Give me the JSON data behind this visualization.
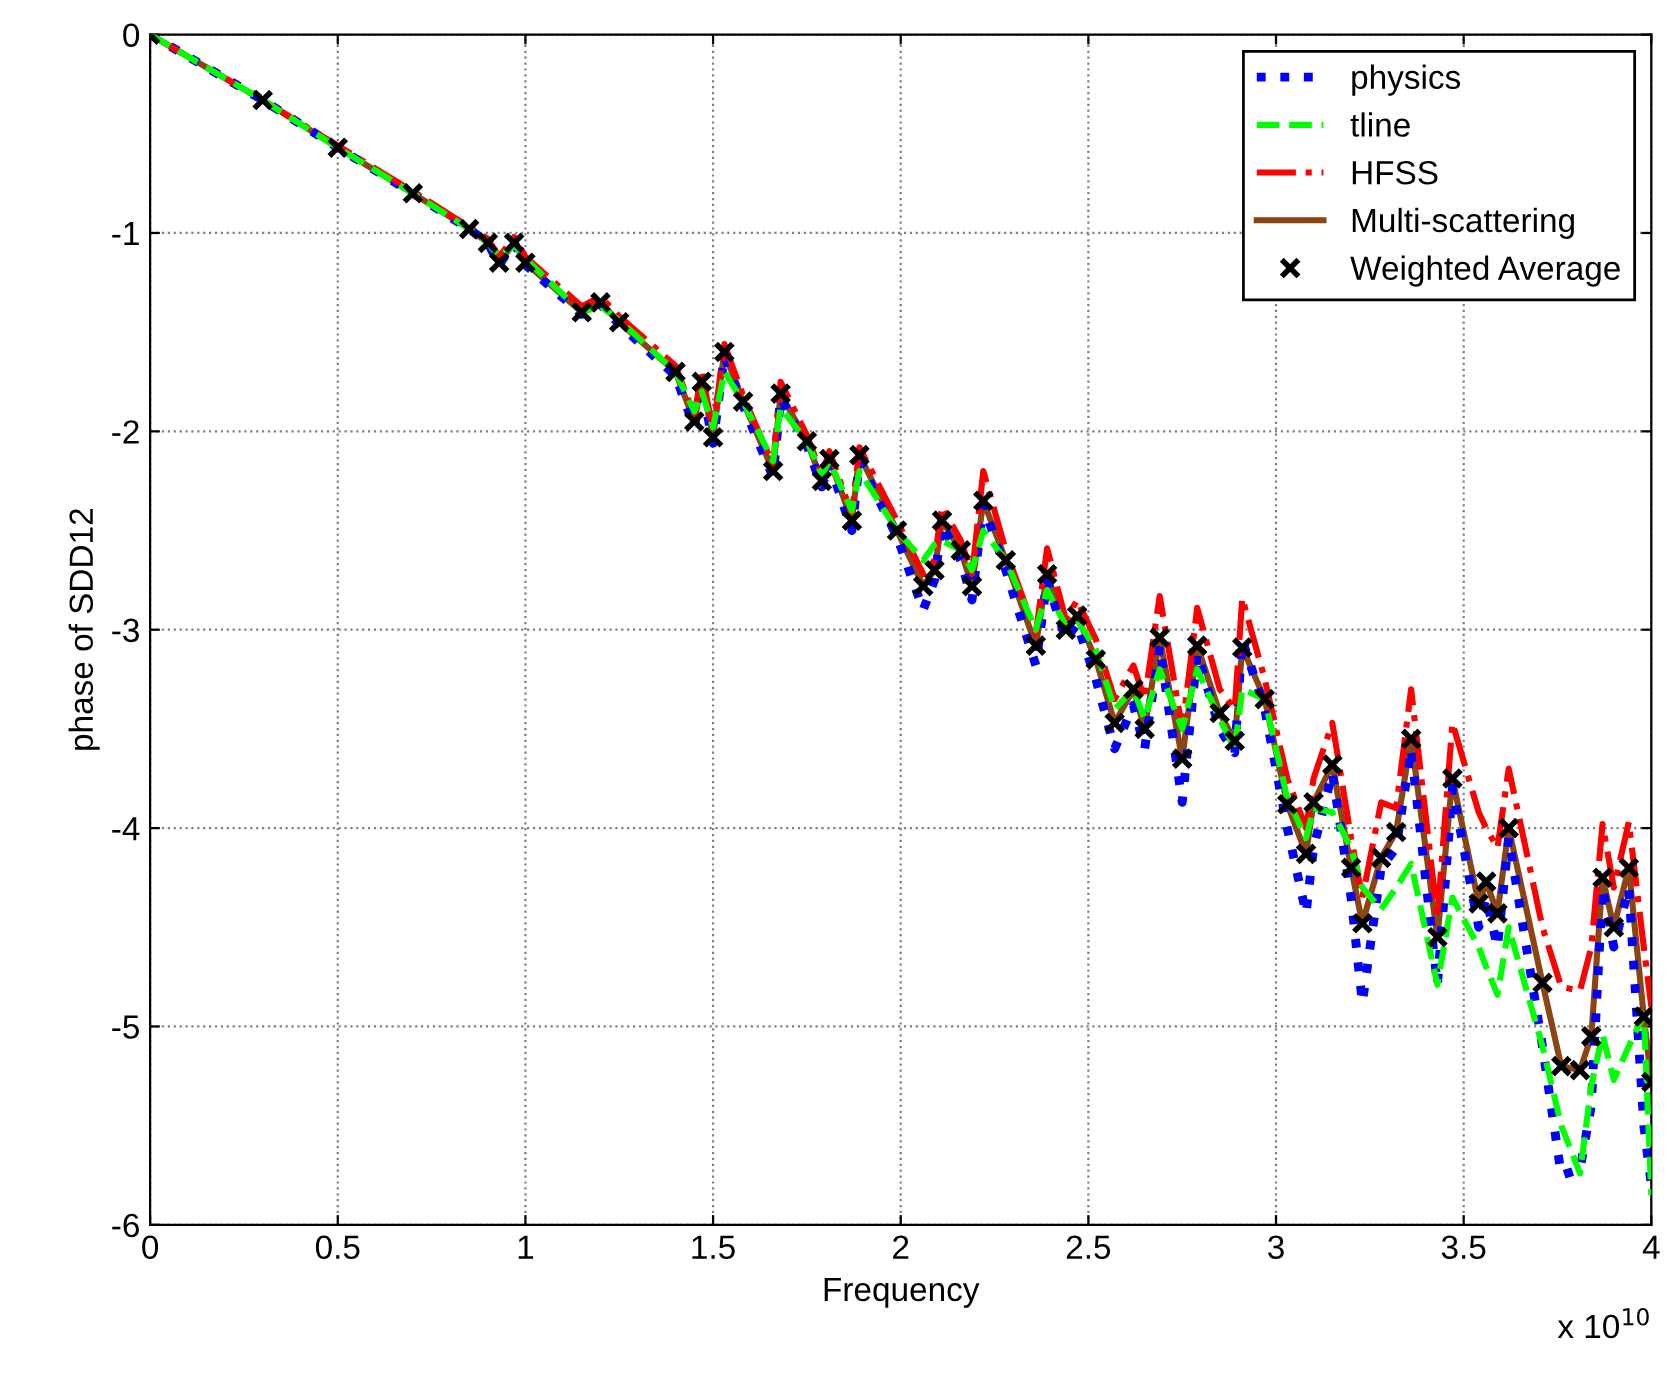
{
  "chart_data": {
    "type": "line",
    "xlabel": "Frequency",
    "ylabel": "phase of SDD12",
    "x": [
      0,
      0.3,
      0.5,
      0.7,
      0.85,
      0.9,
      0.93,
      0.97,
      1.0,
      1.15,
      1.2,
      1.25,
      1.4,
      1.45,
      1.47,
      1.5,
      1.53,
      1.58,
      1.66,
      1.68,
      1.75,
      1.79,
      1.81,
      1.87,
      1.89,
      1.99,
      2.06,
      2.09,
      2.11,
      2.16,
      2.19,
      2.22,
      2.28,
      2.36,
      2.39,
      2.44,
      2.47,
      2.52,
      2.57,
      2.62,
      2.65,
      2.69,
      2.75,
      2.79,
      2.85,
      2.89,
      2.91,
      2.97,
      3.03,
      3.08,
      3.1,
      3.15,
      3.2,
      3.23,
      3.28,
      3.32,
      3.36,
      3.43,
      3.47,
      3.54,
      3.56,
      3.59,
      3.62,
      3.71,
      3.76,
      3.81,
      3.84,
      3.87,
      3.9,
      3.94,
      3.98,
      4.0
    ],
    "series": [
      {
        "name": "physics",
        "color": "#0000ff",
        "line_style": "dotted",
        "values": [
          0,
          -0.33,
          -0.57,
          -0.8,
          -0.98,
          -1.05,
          -1.16,
          -1.05,
          -1.16,
          -1.41,
          -1.36,
          -1.46,
          -1.72,
          -1.98,
          -1.77,
          -2.06,
          -1.62,
          -1.87,
          -2.23,
          -1.83,
          -2.07,
          -2.28,
          -2.16,
          -2.5,
          -2.15,
          -2.53,
          -2.9,
          -2.75,
          -2.47,
          -2.65,
          -2.85,
          -2.37,
          -2.7,
          -3.18,
          -2.75,
          -3.05,
          -2.97,
          -3.25,
          -3.6,
          -3.38,
          -3.6,
          -3.08,
          -3.87,
          -3.12,
          -3.5,
          -3.62,
          -3.05,
          -3.4,
          -4.0,
          -4.43,
          -4.1,
          -3.72,
          -4.35,
          -4.88,
          -4.2,
          -4.1,
          -3.6,
          -4.79,
          -3.8,
          -4.5,
          -4.35,
          -4.6,
          -4.05,
          -5.1,
          -5.75,
          -5.72,
          -5.4,
          -4.3,
          -4.6,
          -4.3,
          -5.5,
          -5.8
        ]
      },
      {
        "name": "tline",
        "color": "#00ff00",
        "line_style": "dashed",
        "values": [
          0,
          -0.33,
          -0.57,
          -0.8,
          -0.98,
          -1.05,
          -1.12,
          -1.06,
          -1.13,
          -1.4,
          -1.37,
          -1.44,
          -1.7,
          -1.9,
          -1.8,
          -1.98,
          -1.7,
          -1.85,
          -2.15,
          -1.88,
          -2.05,
          -2.22,
          -2.15,
          -2.4,
          -2.2,
          -2.5,
          -2.65,
          -2.57,
          -2.55,
          -2.6,
          -2.7,
          -2.5,
          -2.65,
          -3.0,
          -2.8,
          -2.98,
          -2.95,
          -3.1,
          -3.4,
          -3.3,
          -3.45,
          -3.2,
          -3.5,
          -3.2,
          -3.45,
          -3.6,
          -3.3,
          -3.35,
          -3.85,
          -4.05,
          -3.9,
          -3.92,
          -4.1,
          -4.3,
          -4.41,
          -4.3,
          -4.18,
          -4.79,
          -4.35,
          -4.6,
          -4.7,
          -4.84,
          -4.5,
          -5.1,
          -5.5,
          -5.74,
          -5.3,
          -5.04,
          -5.27,
          -5.1,
          -4.94,
          -5.85
        ]
      },
      {
        "name": "HFSS",
        "color": "#ff0000",
        "line_style": "dashdot",
        "values": [
          0,
          -0.33,
          -0.56,
          -0.79,
          -0.97,
          -1.03,
          -1.12,
          -1.02,
          -1.12,
          -1.37,
          -1.32,
          -1.42,
          -1.67,
          -1.92,
          -1.7,
          -2.0,
          -1.56,
          -1.82,
          -2.17,
          -1.75,
          -2.02,
          -2.22,
          -2.1,
          -2.42,
          -2.08,
          -2.45,
          -2.72,
          -2.65,
          -2.38,
          -2.55,
          -2.72,
          -2.2,
          -2.6,
          -3.02,
          -2.59,
          -2.95,
          -2.85,
          -3.05,
          -3.35,
          -3.18,
          -3.35,
          -2.83,
          -3.5,
          -2.89,
          -3.3,
          -3.4,
          -2.84,
          -3.25,
          -3.75,
          -4.0,
          -3.75,
          -3.47,
          -4.05,
          -4.35,
          -3.87,
          -3.9,
          -3.3,
          -4.45,
          -3.47,
          -3.92,
          -4.0,
          -4.1,
          -3.7,
          -4.5,
          -4.8,
          -4.82,
          -4.6,
          -3.98,
          -4.3,
          -3.97,
          -4.6,
          -4.9
        ]
      },
      {
        "name": "Multi-scattering",
        "color": "#8b4513",
        "line_style": "solid",
        "values": [
          0,
          -0.33,
          -0.57,
          -0.8,
          -0.98,
          -1.05,
          -1.15,
          -1.05,
          -1.15,
          -1.4,
          -1.35,
          -1.45,
          -1.7,
          -1.95,
          -1.75,
          -2.03,
          -1.6,
          -1.85,
          -2.2,
          -1.81,
          -2.05,
          -2.25,
          -2.14,
          -2.45,
          -2.12,
          -2.5,
          -2.78,
          -2.7,
          -2.45,
          -2.6,
          -2.78,
          -2.35,
          -2.65,
          -3.08,
          -2.72,
          -3.0,
          -2.93,
          -3.15,
          -3.47,
          -3.3,
          -3.5,
          -3.04,
          -3.65,
          -3.08,
          -3.42,
          -3.56,
          -3.09,
          -3.35,
          -3.88,
          -4.13,
          -3.87,
          -3.68,
          -4.2,
          -4.48,
          -4.15,
          -4.02,
          -3.55,
          -4.55,
          -3.75,
          -4.38,
          -4.27,
          -4.43,
          -4.0,
          -4.78,
          -5.2,
          -5.22,
          -5.05,
          -4.25,
          -4.5,
          -4.2,
          -4.95,
          -5.28
        ]
      },
      {
        "name": "Weighted Average",
        "color": "#000000",
        "type": "scatter",
        "marker": "cross",
        "values": [
          0,
          -0.33,
          -0.57,
          -0.8,
          -0.98,
          -1.05,
          -1.15,
          -1.05,
          -1.15,
          -1.4,
          -1.35,
          -1.45,
          -1.7,
          -1.95,
          -1.75,
          -2.03,
          -1.6,
          -1.85,
          -2.2,
          -1.81,
          -2.05,
          -2.25,
          -2.14,
          -2.45,
          -2.12,
          -2.5,
          -2.78,
          -2.7,
          -2.45,
          -2.6,
          -2.78,
          -2.35,
          -2.65,
          -3.08,
          -2.72,
          -3.0,
          -2.93,
          -3.15,
          -3.47,
          -3.3,
          -3.5,
          -3.04,
          -3.65,
          -3.08,
          -3.42,
          -3.56,
          -3.09,
          -3.35,
          -3.88,
          -4.13,
          -3.87,
          -3.68,
          -4.2,
          -4.48,
          -4.15,
          -4.02,
          -3.55,
          -4.55,
          -3.75,
          -4.38,
          -4.27,
          -4.43,
          -4.0,
          -4.78,
          -5.2,
          -5.22,
          -5.05,
          -4.25,
          -4.5,
          -4.2,
          -4.95,
          -5.28
        ]
      }
    ],
    "xlim": [
      0,
      4
    ],
    "xticks": [
      0,
      0.5,
      1,
      1.5,
      2,
      2.5,
      3,
      3.5,
      4
    ],
    "ylim": [
      -6,
      0
    ],
    "yticks": [
      -6,
      -5,
      -4,
      -3,
      -2,
      -1,
      0
    ],
    "grid": true,
    "legend": "top right",
    "annotations": [
      "x 10$^{10}$"
    ]
  }
}
